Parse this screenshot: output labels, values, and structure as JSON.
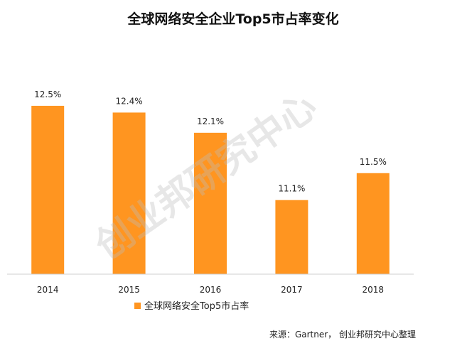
{
  "chart_data": {
    "type": "bar",
    "title": "全球网络安全企业Top5市占率变化",
    "categories": [
      "2014",
      "2015",
      "2016",
      "2017",
      "2018"
    ],
    "series": [
      {
        "name": "全球网络安全Top5市占率",
        "values": [
          12.5,
          12.4,
          12.1,
          11.1,
          11.5
        ],
        "color": "#FF9520"
      }
    ],
    "data_labels": [
      "12.5%",
      "12.4%",
      "12.1%",
      "11.1%",
      "11.5%"
    ],
    "ylim": [
      10,
      12.7
    ],
    "grid": false,
    "legend": "bottom"
  },
  "watermark": "创业邦研究中心",
  "source": "来源：Gartner， 创业邦研究中心整理"
}
